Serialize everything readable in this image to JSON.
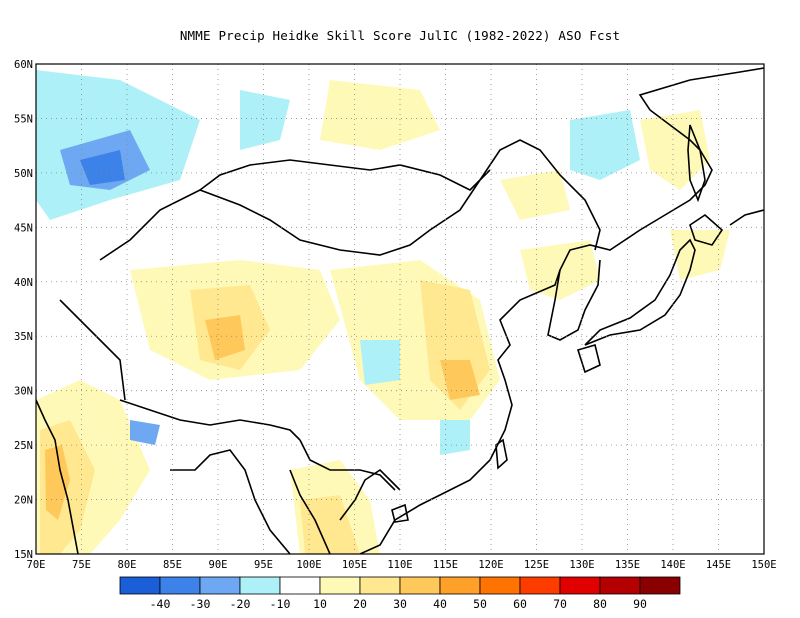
{
  "title": "NMME Precip Heidke Skill Score JulIC (1982-2022) ASO Fcst",
  "map": {
    "lon_range": [
      70,
      150
    ],
    "lat_range": [
      15,
      60
    ],
    "lat_labels": [
      "15N",
      "20N",
      "25N",
      "30N",
      "35N",
      "40N",
      "45N",
      "50N",
      "55N",
      "60N"
    ],
    "lon_labels": [
      "70E",
      "75E",
      "80E",
      "85E",
      "90E",
      "95E",
      "100E",
      "105E",
      "110E",
      "115E",
      "120E",
      "125E",
      "130E",
      "135E",
      "140E",
      "145E",
      "150E"
    ],
    "gridlines": true
  },
  "colorbar": {
    "labels": [
      "-40",
      "-30",
      "-20",
      "-10",
      "10",
      "20",
      "30",
      "40",
      "50",
      "60",
      "70",
      "80",
      "90"
    ],
    "colors": [
      "#1a5ed8",
      "#3c82e8",
      "#6fa8f2",
      "#aef0f7",
      "#ffffff",
      "#fff9b8",
      "#ffe890",
      "#ffc85a",
      "#ffa028",
      "#ff7400",
      "#ff3c00",
      "#e00000",
      "#b40000",
      "#8a0000"
    ]
  }
}
